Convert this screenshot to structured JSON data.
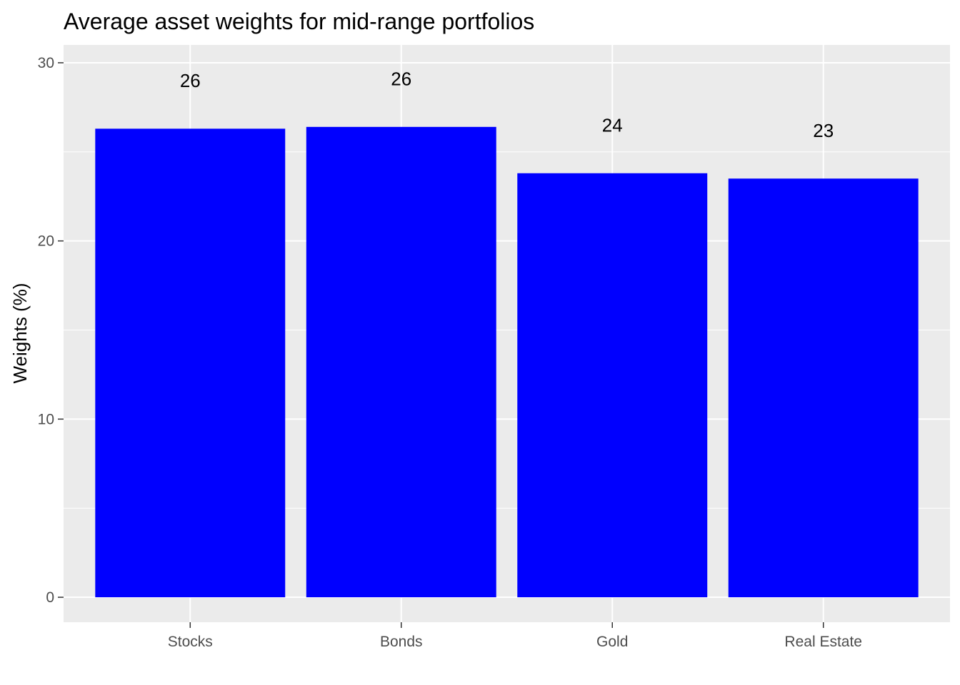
{
  "chart_data": {
    "type": "bar",
    "title": "Average asset weights for mid-range portfolios",
    "xlabel": "",
    "ylabel": "Weights (%)",
    "categories": [
      "Stocks",
      "Bonds",
      "Gold",
      "Real Estate"
    ],
    "values": [
      26.3,
      26.4,
      23.8,
      23.5
    ],
    "data_labels": [
      "26",
      "26",
      "24",
      "23"
    ],
    "ylim": [
      -1.4,
      31
    ],
    "yticks": [
      0,
      10,
      20,
      30
    ],
    "grid": true,
    "legend": "none",
    "bar_color": "#0000ff",
    "panel_background": "#ebebeb",
    "grid_color": "#ffffff"
  }
}
